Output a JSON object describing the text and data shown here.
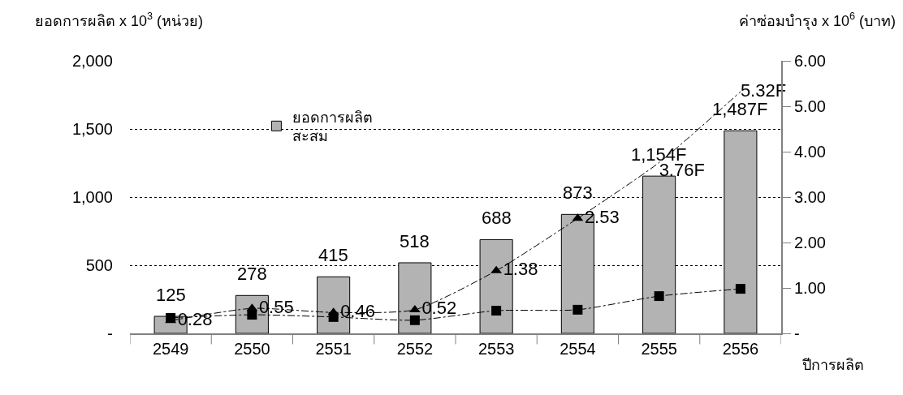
{
  "chart_data": {
    "type": "bar",
    "xlabel": "ปีการผลิต",
    "ylabel": "ยอดการผลิต x 10$^{3}$ (หน่วย)",
    "y2label": "ค่าซ่อมบำรุง x 10$^{6}$ (บาท)",
    "categories": [
      "2549",
      "2550",
      "2551",
      "2552",
      "2553",
      "2554",
      "2555",
      "2556"
    ],
    "series": [
      {
        "name": "ยอดการผลิต\nสะสม",
        "color": "#b3b3b3",
        "values": [
          125,
          278,
          415,
          518,
          688,
          873,
          1154,
          1487
        ],
        "value_labels": [
          "125",
          "278",
          "415",
          "518",
          "688",
          "873",
          "1,154F",
          "1,487F"
        ]
      },
      {
        "type": "line",
        "axis": "y2",
        "color": "#000000",
        "marker": "triangle",
        "line_style": "dashed",
        "values": [
          0.28,
          0.55,
          0.46,
          0.52,
          1.38,
          2.53,
          null,
          null
        ],
        "value_labels": [
          "0.28",
          "0.55",
          "0.46",
          "0.52",
          "1.38",
          "2.53",
          null,
          null
        ]
      },
      {
        "type": "line",
        "axis": "y2",
        "color": "#000000",
        "marker": "none",
        "line_style": "dashed",
        "values": [
          null,
          null,
          null,
          null,
          null,
          2.53,
          3.76,
          5.32
        ],
        "value_labels": [
          null,
          null,
          null,
          null,
          null,
          null,
          "3.76F",
          "5.32F"
        ]
      },
      {
        "type": "line",
        "axis": "y2",
        "color": "#000000",
        "marker": "square",
        "line_style": "dashed",
        "values": [
          0.34,
          0.41,
          0.36,
          0.29,
          0.5,
          0.52,
          0.82,
          0.98
        ]
      }
    ],
    "ylim": [
      0,
      2000
    ],
    "yticks": [
      {
        "value": 0,
        "label": "-"
      },
      {
        "value": 500,
        "label": "500"
      },
      {
        "value": 1000,
        "label": "1,000"
      },
      {
        "value": 1500,
        "label": "1,500"
      },
      {
        "value": 2000,
        "label": "2,000"
      }
    ],
    "y2lim": [
      0,
      6
    ],
    "y2ticks": [
      {
        "value": 0,
        "label": "-"
      },
      {
        "value": 1,
        "label": "1.00"
      },
      {
        "value": 2,
        "label": "2.00"
      },
      {
        "value": 3,
        "label": "3.00"
      },
      {
        "value": 4,
        "label": "4.00"
      },
      {
        "value": 5,
        "label": "5.00"
      },
      {
        "value": 6,
        "label": "6.00"
      }
    ],
    "grid": "y",
    "legend": "top left"
  }
}
